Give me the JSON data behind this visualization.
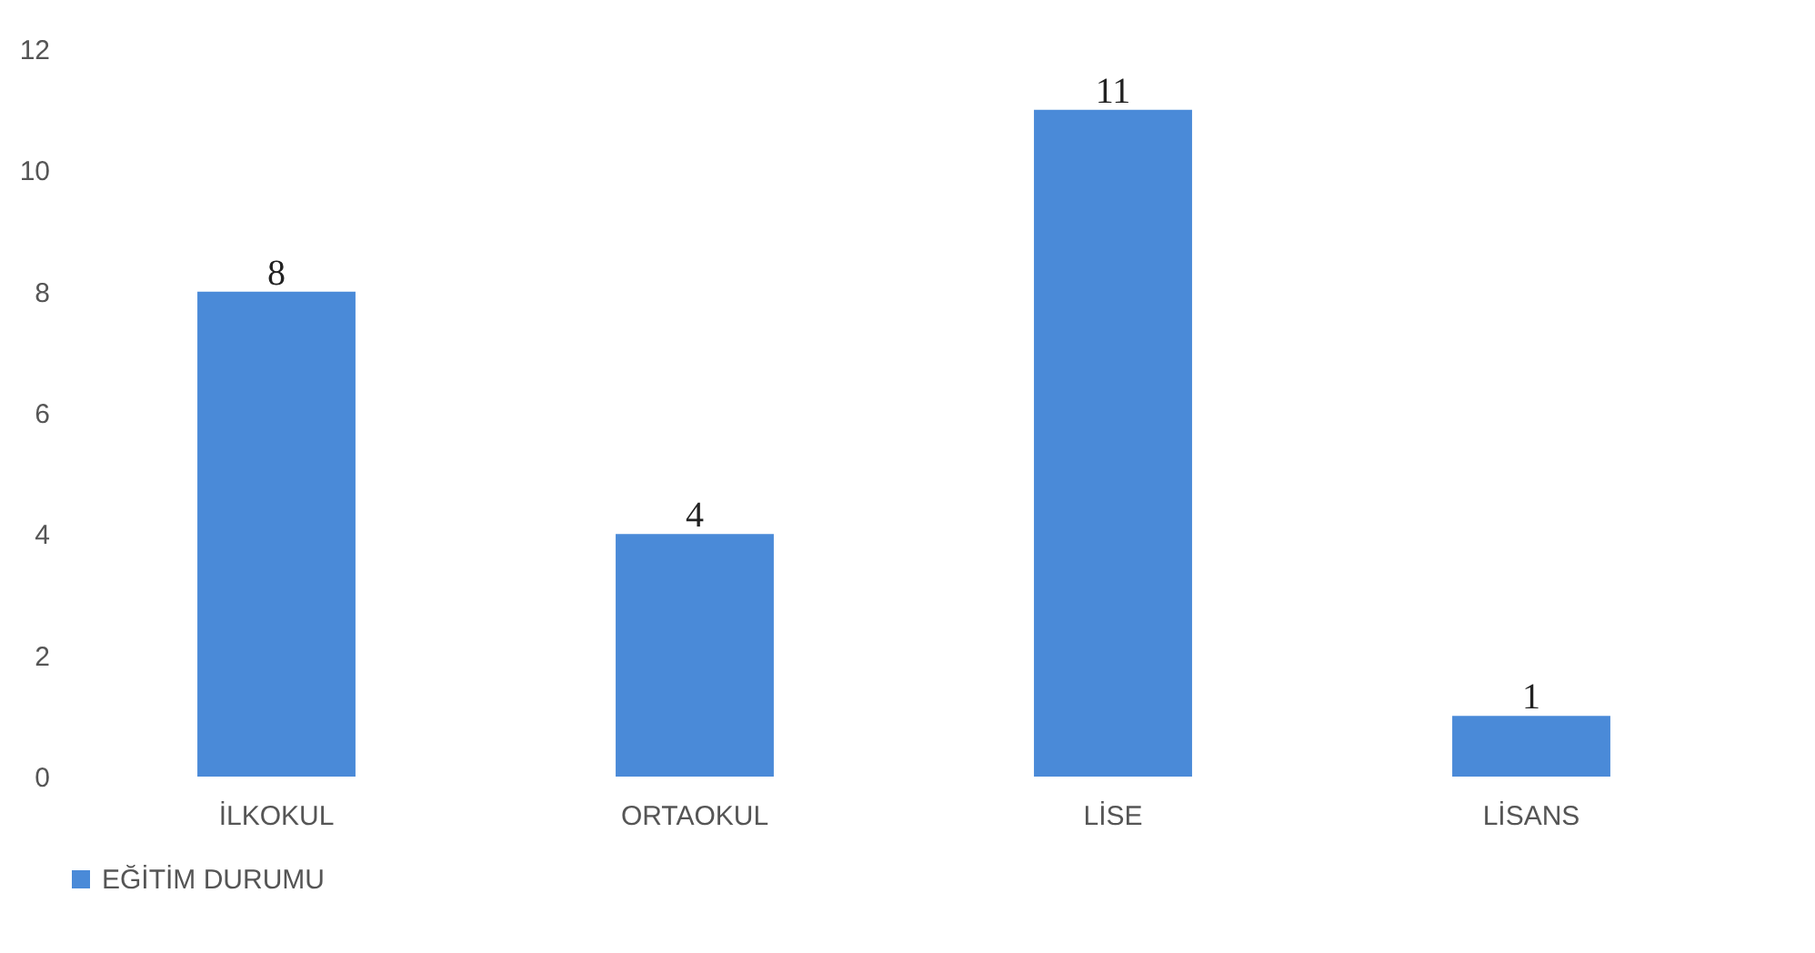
{
  "chart_data": {
    "type": "bar",
    "categories": [
      "İLKOKUL",
      "ORTAOKUL",
      "LİSE",
      "LİSANS"
    ],
    "series": [
      {
        "name": "EĞİTİM DURUMU",
        "color": "#4a8ad8",
        "values": [
          8,
          4,
          11,
          1
        ]
      }
    ],
    "ylim": [
      0,
      12
    ],
    "yticks": [
      0,
      2,
      4,
      6,
      8,
      10,
      12
    ],
    "grid": false,
    "legend": "bottom",
    "data_labels": true
  }
}
